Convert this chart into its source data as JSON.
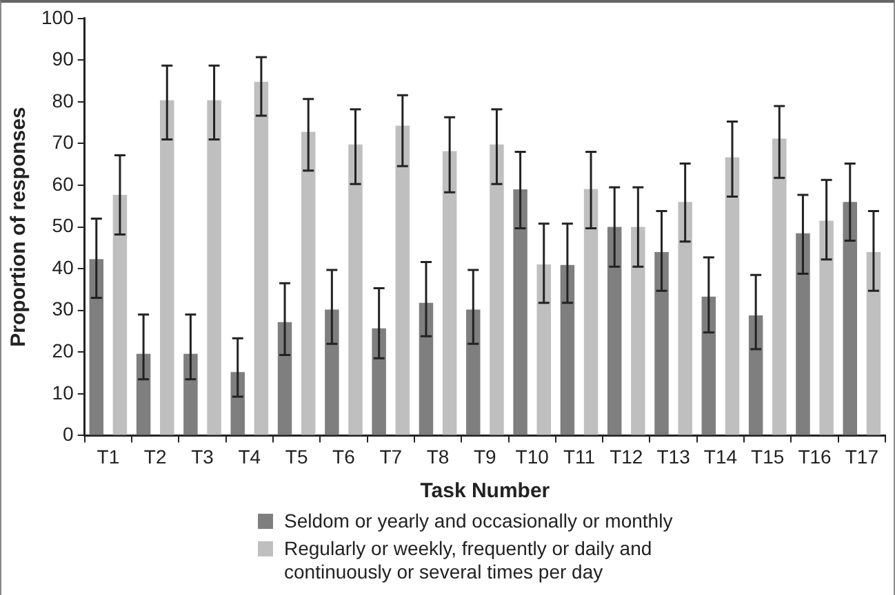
{
  "chart_data": {
    "type": "bar",
    "xlabel": "Task Number",
    "ylabel": "Proportion of responses",
    "categories": [
      "T1",
      "T2",
      "T3",
      "T4",
      "T5",
      "T6",
      "T7",
      "T8",
      "T9",
      "T10",
      "T11",
      "T12",
      "T13",
      "T14",
      "T15",
      "T16",
      "T17"
    ],
    "series": [
      {
        "name": "Seldom or yearly and occasionally or monthly",
        "color": "#7f7f7f",
        "values": [
          42.3,
          19.6,
          19.6,
          15.2,
          27.2,
          30.2,
          25.7,
          31.8,
          30.2,
          59,
          40.9,
          50,
          44,
          33.3,
          28.8,
          48.5,
          56
        ],
        "errors": [
          [
            33,
            52
          ],
          [
            13.5,
            29
          ],
          [
            13.5,
            29
          ],
          [
            9.3,
            23.3
          ],
          [
            19.3,
            36.5
          ],
          [
            22,
            39.7
          ],
          [
            18.5,
            35.3
          ],
          [
            23.8,
            41.6
          ],
          [
            22,
            39.7
          ],
          [
            49.7,
            68
          ],
          [
            31.8,
            50.8
          ],
          [
            40.5,
            59.5
          ],
          [
            34.7,
            53.8
          ],
          [
            24.7,
            42.7
          ],
          [
            20.7,
            38.5
          ],
          [
            38.8,
            57.7
          ],
          [
            46.7,
            65.2
          ]
        ]
      },
      {
        "name": "Regularly or weekly, frequently or daily and continuously or several times per day",
        "color": "#bfbfbf",
        "values": [
          57.7,
          80.4,
          80.4,
          84.8,
          72.8,
          69.8,
          74.3,
          68.2,
          69.8,
          41,
          59.1,
          50,
          56,
          66.7,
          71.2,
          51.5,
          44
        ],
        "errors": [
          [
            48.2,
            67.2
          ],
          [
            71,
            88.7
          ],
          [
            71,
            88.7
          ],
          [
            76.7,
            90.7
          ],
          [
            63.5,
            80.7
          ],
          [
            60.3,
            78.2
          ],
          [
            64.6,
            81.6
          ],
          [
            58.3,
            76.3
          ],
          [
            60.3,
            78.2
          ],
          [
            31.8,
            50.8
          ],
          [
            49.7,
            68
          ],
          [
            40.5,
            59.5
          ],
          [
            46.5,
            65.2
          ],
          [
            57.3,
            75.3
          ],
          [
            61.8,
            79
          ],
          [
            42.2,
            61.3
          ],
          [
            34.7,
            53.8
          ]
        ]
      }
    ],
    "ylim": [
      0,
      100
    ],
    "yticks": [
      0,
      10,
      20,
      30,
      40,
      50,
      60,
      70,
      80,
      90,
      100
    ],
    "grid": false,
    "legend": "bottom"
  }
}
